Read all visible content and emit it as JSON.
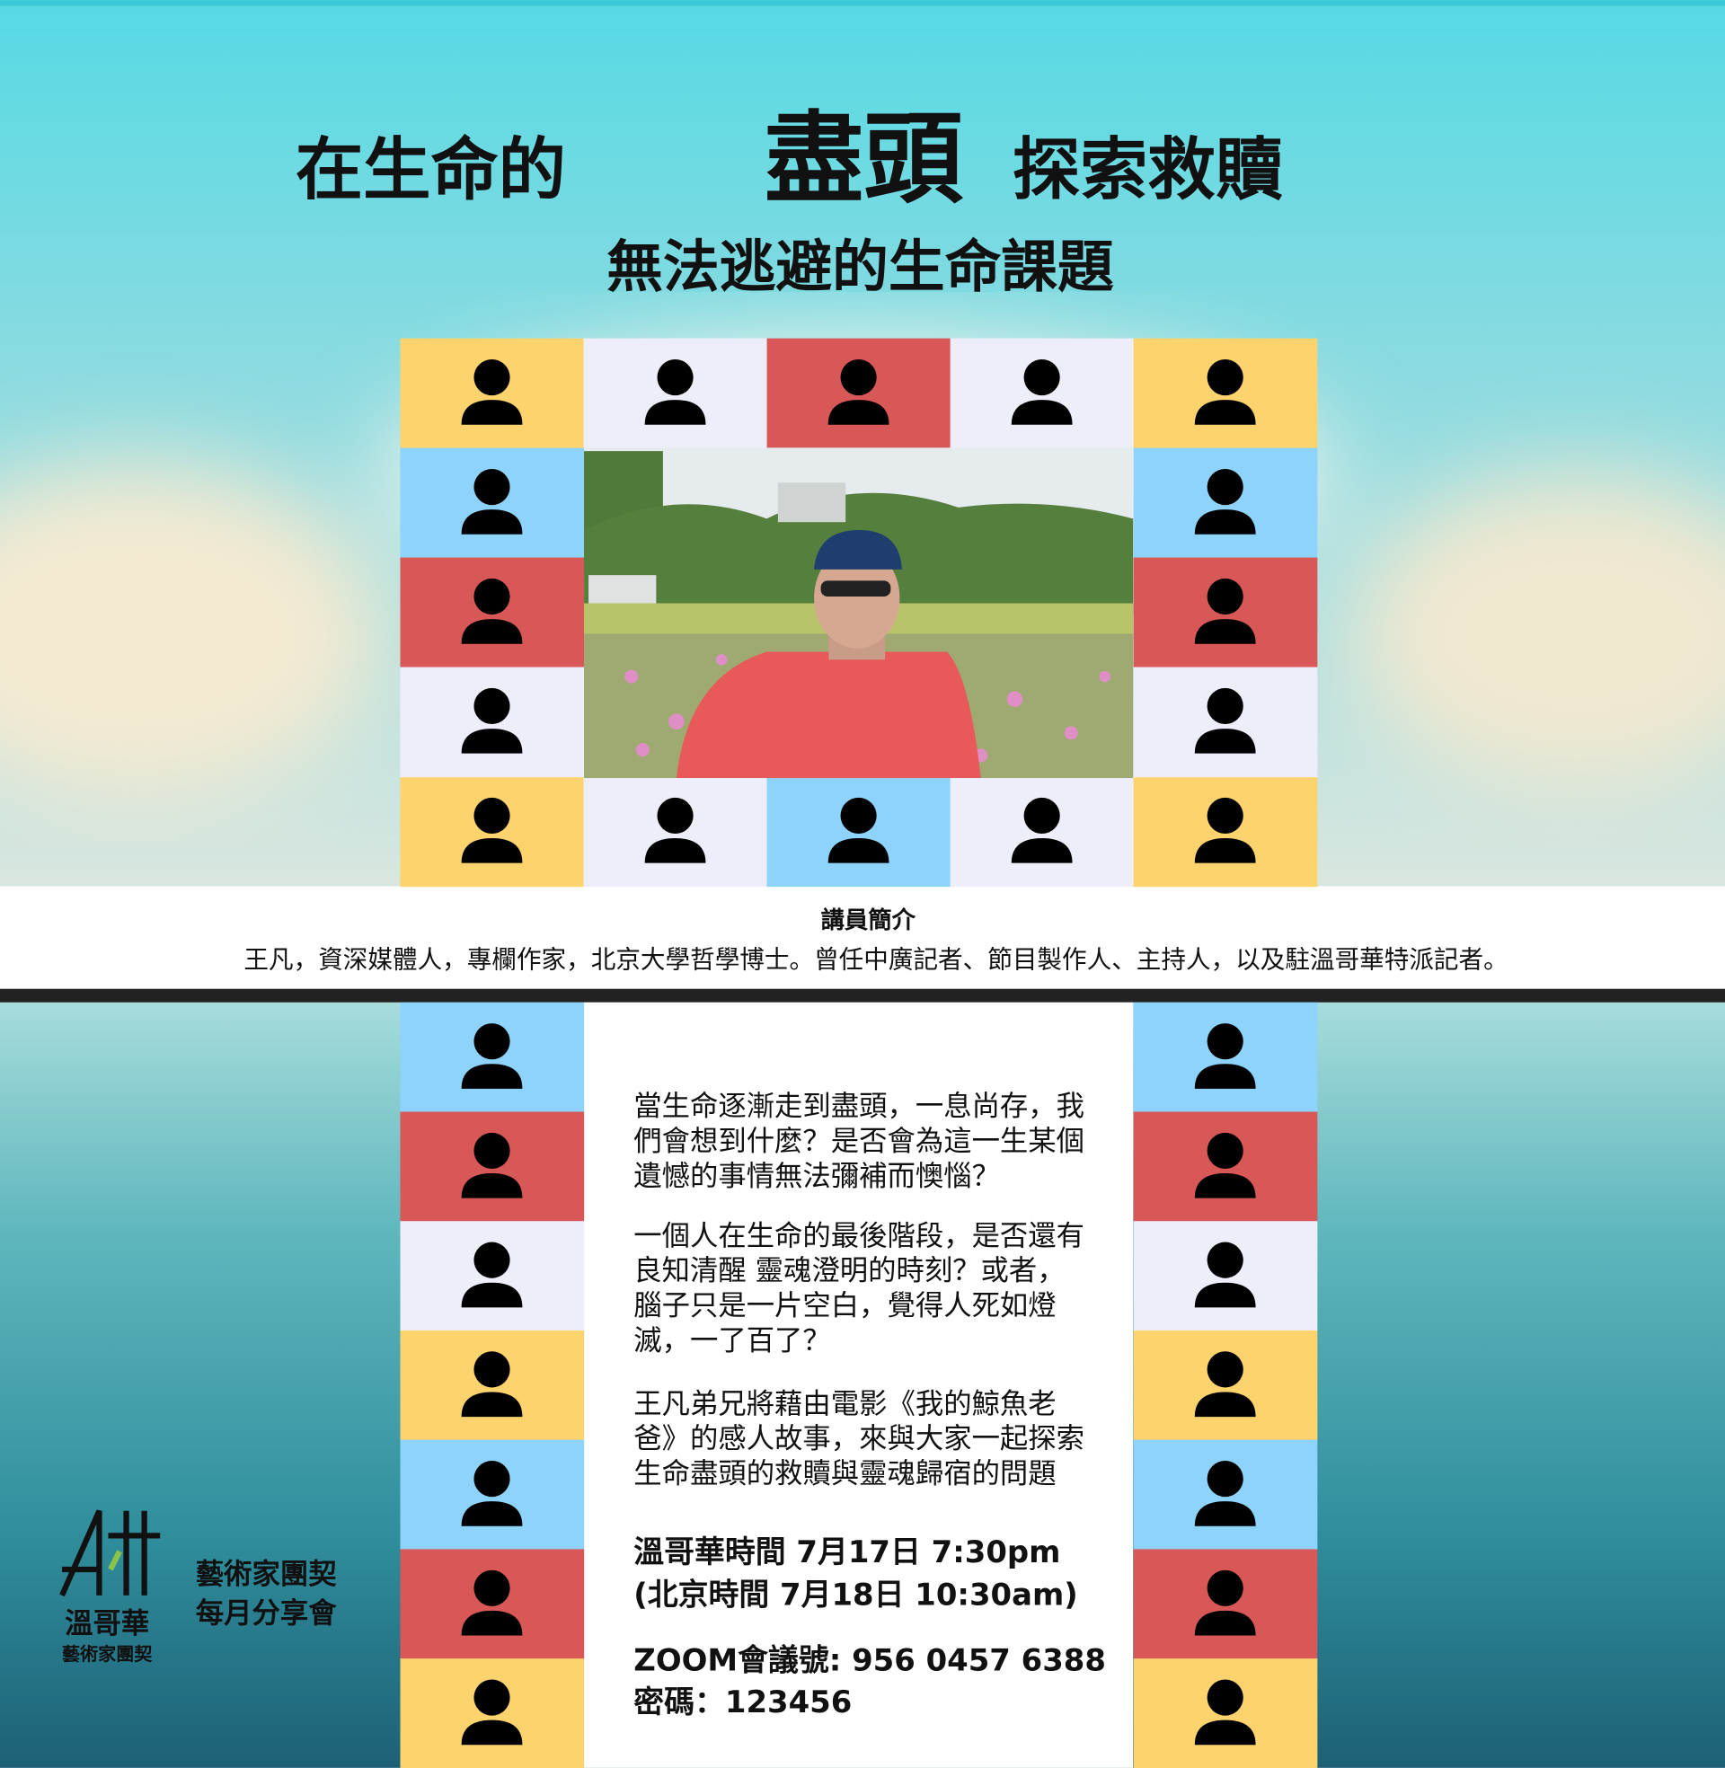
{
  "header": {
    "title_parts": [
      "在生命的",
      "盡頭",
      "探索救贖"
    ],
    "subtitle": "無法逃避的生命課題"
  },
  "speaker": {
    "heading": "講員簡介",
    "bio": "王凡，資深媒體人，專欄作家，北京大學哲學博士。曾任中廣記者、節目製作人、主持人，以及駐溫哥華特派記者。"
  },
  "description": {
    "paragraphs": [
      [
        "當生命逐漸走到盡頭，一息尚存，我",
        "們會想到什麼？是否會為這一生某個",
        "遺憾的事情無法彌補而懊惱？"
      ],
      [
        "一個人在生命的最後階段，是否還有",
        "良知清醒 靈魂澄明的時刻？或者，",
        "腦子只是一片空白，覺得人死如燈",
        "滅，一了百了？"
      ],
      [
        "王凡弟兄將藉由電影《我的鯨魚老",
        "爸》的感人故事，來與大家一起探索",
        "生命盡頭的救贖與靈魂歸宿的問題"
      ]
    ]
  },
  "event": {
    "time_local": "溫哥華時間 7月17日 7:30pm",
    "time_beijing": "(北京時間 7月18日 10:30am)",
    "zoom": "ZOOM會議號: 956 0457 6388",
    "password": "密碼：123456"
  },
  "logo": {
    "city": "溫哥華",
    "org": "藝術家團契",
    "name_line1": "藝術家團契",
    "name_line2": "每月分享會"
  }
}
